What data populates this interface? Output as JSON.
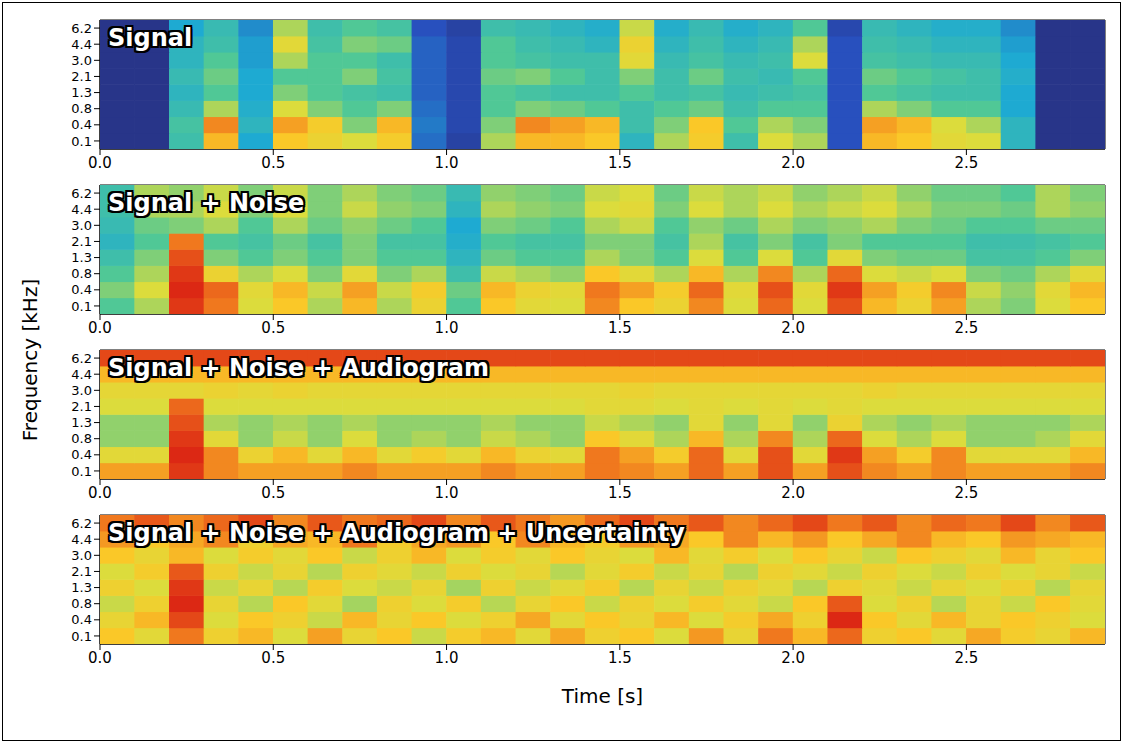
{
  "y_label": "Frequency [kHz]",
  "chart_data": [
    {
      "type": "heatmap",
      "title": "Signal",
      "x": [
        0.05,
        0.15,
        0.25,
        0.35,
        0.45,
        0.55,
        0.65,
        0.75,
        0.85,
        0.95,
        1.05,
        1.15,
        1.25,
        1.35,
        1.45,
        1.55,
        1.65,
        1.75,
        1.85,
        1.95,
        2.05,
        2.15,
        2.25,
        2.35,
        2.45,
        2.55,
        2.65,
        2.75,
        2.85
      ],
      "xlim": [
        0,
        2.9
      ],
      "xticks": [
        {
          "value": 0,
          "label": "0.0"
        },
        0.5,
        {
          "value": 1,
          "label": "1.0"
        },
        1.5,
        {
          "value": 2,
          "label": "2.0"
        },
        2.5
      ],
      "y_categories": [
        "0.1",
        "0.4",
        "0.8",
        "1.3",
        "2.1",
        "3.0",
        "4.4",
        "6.2"
      ],
      "color_range": [
        0,
        100
      ],
      "cells": [
        [
          5,
          5,
          40,
          72,
          30,
          70,
          65,
          60,
          68,
          20,
          10,
          55,
          72,
          72,
          70,
          35,
          55,
          68,
          40,
          60,
          55,
          15,
          72,
          70,
          62,
          60,
          35,
          5,
          5
        ],
        [
          5,
          5,
          42,
          78,
          35,
          75,
          68,
          50,
          72,
          22,
          12,
          50,
          78,
          75,
          72,
          40,
          50,
          70,
          45,
          55,
          50,
          15,
          75,
          72,
          60,
          55,
          35,
          5,
          5
        ],
        [
          5,
          5,
          38,
          55,
          32,
          60,
          50,
          45,
          50,
          20,
          12,
          45,
          50,
          48,
          45,
          40,
          45,
          48,
          40,
          45,
          45,
          15,
          55,
          50,
          45,
          45,
          30,
          5,
          5
        ],
        [
          5,
          5,
          35,
          45,
          30,
          50,
          45,
          42,
          40,
          18,
          12,
          45,
          42,
          40,
          40,
          45,
          40,
          42,
          38,
          40,
          42,
          15,
          45,
          42,
          40,
          40,
          30,
          5,
          5
        ],
        [
          5,
          5,
          38,
          48,
          30,
          45,
          45,
          50,
          42,
          18,
          12,
          48,
          50,
          45,
          40,
          50,
          40,
          48,
          40,
          38,
          45,
          15,
          48,
          45,
          42,
          40,
          32,
          5,
          5
        ],
        [
          5,
          5,
          35,
          45,
          28,
          55,
          45,
          45,
          40,
          18,
          12,
          45,
          42,
          40,
          40,
          62,
          38,
          42,
          38,
          40,
          60,
          15,
          42,
          40,
          38,
          38,
          30,
          5,
          5
        ],
        [
          5,
          5,
          35,
          40,
          28,
          62,
          42,
          50,
          48,
          18,
          12,
          45,
          40,
          38,
          35,
          65,
          35,
          40,
          35,
          38,
          55,
          15,
          40,
          38,
          35,
          35,
          28,
          5,
          5
        ],
        [
          5,
          5,
          30,
          38,
          25,
          55,
          40,
          45,
          42,
          15,
          10,
          40,
          38,
          35,
          32,
          58,
          32,
          38,
          32,
          35,
          45,
          12,
          38,
          35,
          32,
          32,
          25,
          5,
          5
        ]
      ]
    },
    {
      "type": "heatmap",
      "title": "Signal + Noise",
      "x": [
        0.05,
        0.15,
        0.25,
        0.35,
        0.45,
        0.55,
        0.65,
        0.75,
        0.85,
        0.95,
        1.05,
        1.15,
        1.25,
        1.35,
        1.45,
        1.55,
        1.65,
        1.75,
        1.85,
        1.95,
        2.05,
        2.15,
        2.25,
        2.35,
        2.45,
        2.55,
        2.65,
        2.75,
        2.85
      ],
      "xlim": [
        0,
        2.9
      ],
      "xticks": [
        {
          "value": 0,
          "label": "0.0"
        },
        0.5,
        {
          "value": 1,
          "label": "1.0"
        },
        1.5,
        {
          "value": 2,
          "label": "2.0"
        },
        2.5
      ],
      "y_categories": [
        "0.1",
        "0.4",
        "0.8",
        "1.3",
        "2.1",
        "3.0",
        "4.4",
        "6.2"
      ],
      "color_range": [
        0,
        100
      ],
      "cells": [
        [
          45,
          55,
          88,
          80,
          60,
          70,
          55,
          72,
          55,
          65,
          45,
          70,
          62,
          60,
          78,
          70,
          65,
          78,
          60,
          82,
          60,
          85,
          72,
          65,
          75,
          55,
          50,
          60,
          70
        ],
        [
          50,
          60,
          90,
          82,
          62,
          72,
          58,
          75,
          58,
          68,
          48,
          72,
          65,
          62,
          80,
          75,
          68,
          82,
          62,
          85,
          62,
          88,
          75,
          68,
          78,
          58,
          52,
          62,
          72
        ],
        [
          45,
          55,
          88,
          65,
          55,
          60,
          50,
          62,
          50,
          55,
          40,
          58,
          55,
          52,
          70,
          62,
          55,
          72,
          55,
          78,
          55,
          82,
          60,
          58,
          60,
          50,
          48,
          55,
          62
        ],
        [
          40,
          50,
          85,
          50,
          45,
          50,
          45,
          50,
          45,
          45,
          35,
          48,
          45,
          45,
          55,
          50,
          45,
          60,
          45,
          60,
          45,
          62,
          50,
          48,
          48,
          42,
          42,
          45,
          50
        ],
        [
          35,
          45,
          80,
          45,
          42,
          48,
          42,
          50,
          42,
          42,
          32,
          45,
          42,
          42,
          50,
          50,
          42,
          55,
          42,
          50,
          42,
          50,
          45,
          45,
          45,
          40,
          40,
          42,
          45
        ],
        [
          38,
          48,
          50,
          55,
          45,
          55,
          48,
          52,
          48,
          45,
          30,
          50,
          48,
          45,
          55,
          58,
          45,
          52,
          48,
          55,
          50,
          52,
          55,
          50,
          48,
          45,
          45,
          48,
          48
        ],
        [
          40,
          55,
          55,
          60,
          50,
          60,
          50,
          58,
          52,
          50,
          35,
          55,
          52,
          50,
          60,
          62,
          50,
          60,
          55,
          60,
          55,
          58,
          60,
          55,
          50,
          50,
          48,
          55,
          52
        ],
        [
          40,
          55,
          52,
          58,
          50,
          58,
          50,
          55,
          50,
          48,
          38,
          52,
          50,
          48,
          58,
          60,
          48,
          58,
          55,
          58,
          52,
          55,
          58,
          52,
          48,
          48,
          45,
          55,
          50
        ]
      ]
    },
    {
      "type": "heatmap",
      "title": "Signal + Noise + Audiogram",
      "x": [
        0.05,
        0.15,
        0.25,
        0.35,
        0.45,
        0.55,
        0.65,
        0.75,
        0.85,
        0.95,
        1.05,
        1.15,
        1.25,
        1.35,
        1.45,
        1.55,
        1.65,
        1.75,
        1.85,
        1.95,
        2.05,
        2.15,
        2.25,
        2.35,
        2.45,
        2.55,
        2.65,
        2.75,
        2.85
      ],
      "xlim": [
        0,
        2.9
      ],
      "xticks": [
        {
          "value": 0,
          "label": "0.0"
        },
        0.5,
        {
          "value": 1,
          "label": "1.0"
        },
        1.5,
        {
          "value": 2,
          "label": "2.0"
        },
        2.5
      ],
      "y_categories": [
        "0.1",
        "0.4",
        "0.8",
        "1.3",
        "2.1",
        "3.0",
        "4.4",
        "6.2"
      ],
      "color_range": [
        0,
        100
      ],
      "cells": [
        [
          75,
          75,
          88,
          78,
          75,
          75,
          75,
          78,
          75,
          75,
          75,
          78,
          75,
          75,
          80,
          78,
          75,
          82,
          75,
          85,
          75,
          85,
          78,
          75,
          78,
          75,
          75,
          75,
          78
        ],
        [
          62,
          62,
          90,
          78,
          65,
          72,
          62,
          72,
          62,
          68,
          62,
          72,
          65,
          62,
          80,
          75,
          68,
          82,
          62,
          85,
          62,
          88,
          75,
          68,
          78,
          62,
          62,
          62,
          72
        ],
        [
          52,
          52,
          88,
          62,
          52,
          58,
          52,
          60,
          52,
          55,
          52,
          58,
          55,
          52,
          70,
          62,
          55,
          72,
          55,
          78,
          55,
          82,
          60,
          55,
          60,
          52,
          52,
          55,
          62
        ],
        [
          52,
          52,
          85,
          55,
          52,
          55,
          52,
          55,
          52,
          52,
          52,
          55,
          52,
          52,
          58,
          55,
          52,
          62,
          52,
          62,
          52,
          65,
          55,
          52,
          55,
          52,
          52,
          52,
          55
        ],
        [
          60,
          60,
          82,
          60,
          60,
          60,
          60,
          60,
          60,
          60,
          60,
          60,
          60,
          60,
          62,
          62,
          60,
          62,
          60,
          62,
          60,
          62,
          60,
          60,
          60,
          60,
          60,
          60,
          60
        ],
        [
          63,
          63,
          63,
          65,
          63,
          65,
          63,
          63,
          63,
          63,
          63,
          63,
          63,
          63,
          63,
          65,
          63,
          63,
          63,
          63,
          63,
          63,
          65,
          63,
          63,
          63,
          63,
          63,
          63
        ],
        [
          72,
          72,
          72,
          72,
          72,
          72,
          72,
          72,
          72,
          72,
          72,
          72,
          72,
          72,
          72,
          72,
          72,
          72,
          72,
          72,
          72,
          72,
          72,
          72,
          72,
          72,
          72,
          72,
          72
        ],
        [
          86,
          86,
          86,
          86,
          86,
          86,
          86,
          86,
          86,
          86,
          86,
          86,
          86,
          86,
          86,
          86,
          86,
          86,
          86,
          86,
          86,
          86,
          86,
          86,
          86,
          86,
          86,
          86,
          86
        ]
      ]
    },
    {
      "type": "heatmap",
      "title": "Signal + Noise + Audiogram + Uncertainty",
      "x_label": "Time [s]",
      "x": [
        0.05,
        0.15,
        0.25,
        0.35,
        0.45,
        0.55,
        0.65,
        0.75,
        0.85,
        0.95,
        1.05,
        1.15,
        1.25,
        1.35,
        1.45,
        1.55,
        1.65,
        1.75,
        1.85,
        1.95,
        2.05,
        2.15,
        2.25,
        2.35,
        2.45,
        2.55,
        2.65,
        2.75,
        2.85
      ],
      "xlim": [
        0,
        2.9
      ],
      "xticks": [
        {
          "value": 0,
          "label": "0.0"
        },
        0.5,
        {
          "value": 1,
          "label": "1.0"
        },
        1.5,
        {
          "value": 2,
          "label": "2.0"
        },
        2.5
      ],
      "y_categories": [
        "0.1",
        "0.4",
        "0.8",
        "1.3",
        "2.1",
        "3.0",
        "4.4",
        "6.2"
      ],
      "color_range": [
        0,
        100
      ],
      "cells": [
        [
          70,
          62,
          80,
          66,
          72,
          60,
          75,
          64,
          70,
          58,
          68,
          72,
          62,
          74,
          66,
          70,
          60,
          76,
          64,
          80,
          72,
          82,
          66,
          70,
          62,
          74,
          68,
          64,
          72
        ],
        [
          64,
          72,
          86,
          60,
          70,
          66,
          58,
          72,
          64,
          70,
          60,
          66,
          74,
          62,
          70,
          64,
          72,
          60,
          68,
          74,
          66,
          90,
          70,
          62,
          72,
          64,
          70,
          66,
          60
        ],
        [
          58,
          66,
          90,
          64,
          56,
          70,
          62,
          54,
          66,
          60,
          68,
          56,
          64,
          70,
          58,
          66,
          60,
          68,
          62,
          58,
          70,
          84,
          60,
          66,
          56,
          64,
          58,
          70,
          62
        ],
        [
          66,
          60,
          88,
          58,
          64,
          56,
          68,
          60,
          58,
          64,
          54,
          66,
          58,
          62,
          68,
          56,
          64,
          58,
          66,
          62,
          56,
          66,
          62,
          58,
          64,
          60,
          66,
          56,
          64
        ],
        [
          60,
          68,
          84,
          66,
          58,
          64,
          56,
          66,
          62,
          58,
          66,
          60,
          64,
          56,
          62,
          68,
          58,
          64,
          56,
          66,
          62,
          58,
          66,
          60,
          58,
          66,
          60,
          64,
          58
        ],
        [
          70,
          64,
          72,
          60,
          68,
          62,
          70,
          58,
          66,
          72,
          60,
          68,
          62,
          70,
          64,
          60,
          72,
          62,
          68,
          60,
          70,
          64,
          58,
          70,
          66,
          62,
          72,
          64,
          70
        ],
        [
          76,
          70,
          74,
          78,
          66,
          74,
          72,
          80,
          68,
          74,
          76,
          70,
          78,
          72,
          68,
          76,
          74,
          70,
          78,
          72,
          76,
          70,
          74,
          78,
          72,
          70,
          76,
          74,
          72
        ],
        [
          80,
          84,
          78,
          82,
          86,
          78,
          84,
          80,
          82,
          86,
          78,
          84,
          80,
          76,
          82,
          86,
          80,
          84,
          78,
          82,
          86,
          80,
          84,
          78,
          82,
          80,
          86,
          78,
          84
        ]
      ]
    }
  ]
}
